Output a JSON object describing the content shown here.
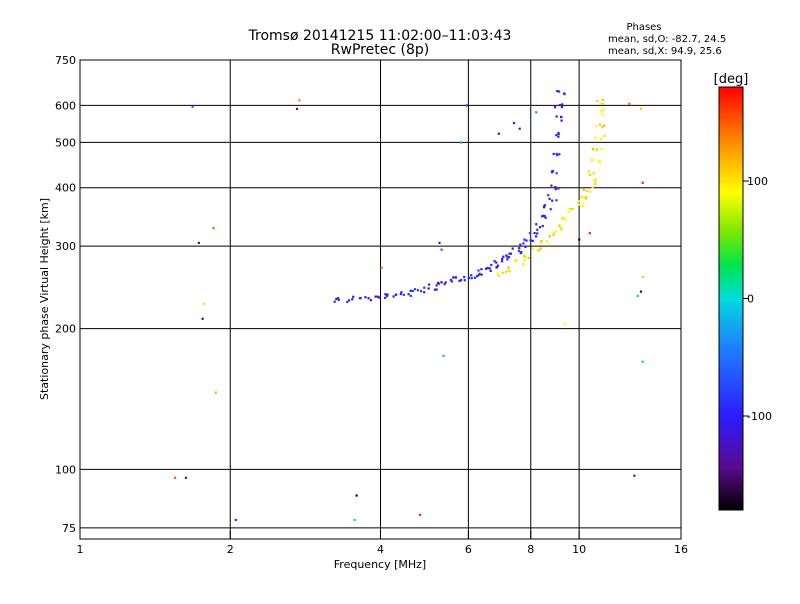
{
  "chart_data": {
    "type": "scatter",
    "title": "Tromsø 20141215 11:02:00–11:03:43",
    "subtitle": "RwPretec (8p)",
    "xlabel": "Frequency [MHz]",
    "ylabel": "Stationary phase Virtual Height [km]",
    "xscale": "log2",
    "yscale": "log",
    "xlim": [
      1,
      16
    ],
    "ylim": [
      71,
      750
    ],
    "xticks": [
      1,
      2,
      4,
      6,
      8,
      10,
      16
    ],
    "xticklabels": [
      "1",
      "2",
      "4",
      "6",
      "8",
      "10",
      "16"
    ],
    "yticks": [
      75,
      100,
      200,
      300,
      400,
      500,
      600,
      750
    ],
    "yticklabels": [
      "75",
      "100",
      "200",
      "300",
      "400",
      "500",
      "600",
      "750"
    ],
    "grid": true,
    "stats": {
      "heading": "Phases",
      "line_o": "mean, sd,O: -82.7, 24.5",
      "line_x": "mean, sd,X:  94.9, 25.6"
    },
    "colorbar": {
      "label": "[deg]",
      "range": [
        -180,
        180
      ],
      "ticks": [
        100,
        0,
        -100
      ],
      "ticklabels": [
        "100",
        "0",
        "-100"
      ]
    },
    "series": [
      {
        "name": "O-mode trace",
        "phase": -100,
        "points": [
          [
            3.3,
            231
          ],
          [
            3.5,
            231
          ],
          [
            3.7,
            232
          ],
          [
            3.9,
            233
          ],
          [
            4.1,
            234
          ],
          [
            4.3,
            236
          ],
          [
            4.5,
            238
          ],
          [
            4.7,
            240
          ],
          [
            4.9,
            242
          ],
          [
            5.1,
            245
          ],
          [
            5.3,
            248
          ],
          [
            5.5,
            251
          ],
          [
            5.7,
            254
          ],
          [
            5.9,
            257
          ],
          [
            6.1,
            260
          ],
          [
            6.3,
            263
          ],
          [
            6.5,
            267
          ],
          [
            6.7,
            271
          ],
          [
            6.9,
            276
          ],
          [
            7.1,
            281
          ],
          [
            7.3,
            287
          ],
          [
            7.5,
            294
          ],
          [
            7.7,
            301
          ],
          [
            7.9,
            309
          ],
          [
            8.1,
            319
          ],
          [
            8.3,
            330
          ],
          [
            8.5,
            345
          ],
          [
            8.7,
            365
          ],
          [
            8.8,
            380
          ],
          [
            8.9,
            400
          ],
          [
            9.0,
            430
          ],
          [
            9.05,
            470
          ],
          [
            9.1,
            520
          ],
          [
            9.1,
            560
          ],
          [
            9.15,
            600
          ],
          [
            9.15,
            640
          ]
        ]
      },
      {
        "name": "X-mode trace",
        "phase": 100,
        "points": [
          [
            7.0,
            262
          ],
          [
            7.3,
            268
          ],
          [
            7.6,
            276
          ],
          [
            7.9,
            285
          ],
          [
            8.2,
            295
          ],
          [
            8.5,
            306
          ],
          [
            8.8,
            318
          ],
          [
            9.1,
            330
          ],
          [
            9.4,
            342
          ],
          [
            9.7,
            356
          ],
          [
            10.0,
            370
          ],
          [
            10.2,
            384
          ],
          [
            10.4,
            398
          ],
          [
            10.6,
            412
          ],
          [
            10.7,
            430
          ],
          [
            10.8,
            455
          ],
          [
            10.9,
            480
          ],
          [
            11.0,
            510
          ],
          [
            11.0,
            545
          ],
          [
            11.05,
            580
          ],
          [
            11.05,
            610
          ]
        ]
      },
      {
        "name": "scattered echoes",
        "points": [
          [
            1.68,
            596,
            -60
          ],
          [
            1.73,
            305,
            -120
          ],
          [
            1.77,
            226,
            80
          ],
          [
            1.76,
            210,
            -150
          ],
          [
            1.87,
            146,
            120
          ],
          [
            2.05,
            78,
            -100
          ],
          [
            1.55,
            96,
            150
          ],
          [
            1.63,
            96,
            -110
          ],
          [
            2.72,
            590,
            -130
          ],
          [
            2.75,
            615,
            140
          ],
          [
            1.85,
            328,
            150
          ],
          [
            3.58,
            88,
            -170
          ],
          [
            3.55,
            78,
            -10
          ],
          [
            4.02,
            270,
            140
          ],
          [
            4.8,
            80,
            170
          ],
          [
            5.25,
            305,
            -140
          ],
          [
            5.3,
            295,
            -60
          ],
          [
            5.8,
            500,
            -30
          ],
          [
            5.95,
            600,
            -80
          ],
          [
            6.9,
            522,
            -130
          ],
          [
            7.4,
            550,
            -100
          ],
          [
            8.2,
            580,
            -30
          ],
          [
            5.35,
            175,
            -20
          ],
          [
            7.6,
            535,
            -120
          ],
          [
            12.6,
            605,
            150
          ],
          [
            13.3,
            590,
            110
          ],
          [
            13.4,
            410,
            170
          ],
          [
            13.1,
            235,
            -10
          ],
          [
            13.3,
            240,
            -160
          ],
          [
            13.4,
            258,
            110
          ],
          [
            12.9,
            97,
            -140
          ],
          [
            13.4,
            170,
            20
          ],
          [
            9.35,
            205,
            90
          ],
          [
            10.5,
            320,
            170
          ],
          [
            10.0,
            310,
            -170
          ]
        ]
      }
    ]
  }
}
